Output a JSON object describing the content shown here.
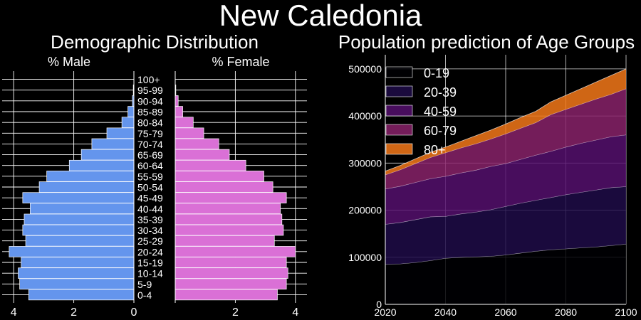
{
  "page": {
    "title": "New Caledonia",
    "left_title": "Demographic Distribution",
    "right_title": "Population prediction of Age Groups"
  },
  "chart_data": [
    {
      "type": "bar",
      "subtype": "population-pyramid",
      "title": "Demographic Distribution",
      "male_label": "% Male",
      "female_label": "% Female",
      "categories": [
        "0-4",
        "5-9",
        "10-14",
        "15-19",
        "20-24",
        "25-29",
        "30-34",
        "35-39",
        "40-44",
        "45-49",
        "50-54",
        "55-59",
        "60-64",
        "65-69",
        "70-74",
        "75-79",
        "80-84",
        "85-89",
        "90-94",
        "95-99",
        "100+"
      ],
      "series": [
        {
          "name": "% Male",
          "color": "#6495ed",
          "values": [
            3.5,
            3.8,
            3.85,
            3.75,
            4.15,
            3.6,
            3.7,
            3.65,
            3.45,
            3.7,
            3.15,
            2.9,
            2.15,
            1.75,
            1.4,
            0.9,
            0.4,
            0.2,
            0.05,
            0.02,
            0.0
          ]
        },
        {
          "name": "% Female",
          "color": "#da70d6",
          "values": [
            3.4,
            3.7,
            3.75,
            3.7,
            4.0,
            3.3,
            3.6,
            3.55,
            3.5,
            3.7,
            3.25,
            2.95,
            2.35,
            1.8,
            1.45,
            0.95,
            0.6,
            0.25,
            0.1,
            0.02,
            0.0
          ]
        }
      ],
      "xticks": [
        4,
        2,
        0,
        2,
        4
      ],
      "xlim": [
        0,
        4.4
      ]
    },
    {
      "type": "area",
      "title": "Population prediction of Age Groups",
      "x": [
        2020,
        2025,
        2030,
        2035,
        2040,
        2045,
        2050,
        2055,
        2060,
        2065,
        2070,
        2075,
        2080,
        2085,
        2090,
        2095,
        2100
      ],
      "series": [
        {
          "name": "0-19",
          "color": "#000004",
          "values": [
            85000,
            86000,
            89000,
            93000,
            98000,
            100000,
            101000,
            102000,
            105000,
            109000,
            113000,
            116000,
            118000,
            120000,
            122000,
            125000,
            128000
          ]
        },
        {
          "name": "20-39",
          "color": "#1f0c48",
          "values": [
            85000,
            88000,
            91000,
            93000,
            89000,
            92000,
            95000,
            99000,
            103000,
            106000,
            108000,
            111000,
            115000,
            118000,
            121000,
            123000,
            122000
          ]
        },
        {
          "name": "40-59",
          "color": "#550f6d",
          "values": [
            75000,
            77000,
            79000,
            81000,
            85000,
            87000,
            89000,
            92000,
            91000,
            93000,
            96000,
            98000,
            101000,
            104000,
            106000,
            108000,
            110000
          ]
        },
        {
          "name": "60-79",
          "color": "#88226a",
          "values": [
            30000,
            35000,
            40000,
            45000,
            50000,
            53000,
            56000,
            58000,
            63000,
            66000,
            69000,
            78000,
            80000,
            83000,
            87000,
            90000,
            98000
          ]
        },
        {
          "name": "80+",
          "color": "#f37819",
          "values": [
            8000,
            9000,
            10000,
            11000,
            12000,
            14000,
            17000,
            19000,
            21000,
            23000,
            24000,
            27000,
            30000,
            33000,
            36000,
            40000,
            42000
          ]
        }
      ],
      "xticks": [
        2020,
        2040,
        2060,
        2080,
        2100
      ],
      "yticks": [
        0,
        100000,
        200000,
        300000,
        400000,
        500000
      ],
      "xlim": [
        2020,
        2100
      ],
      "ylim": [
        0,
        530000
      ],
      "grid": true,
      "legend": "top-left"
    }
  ]
}
